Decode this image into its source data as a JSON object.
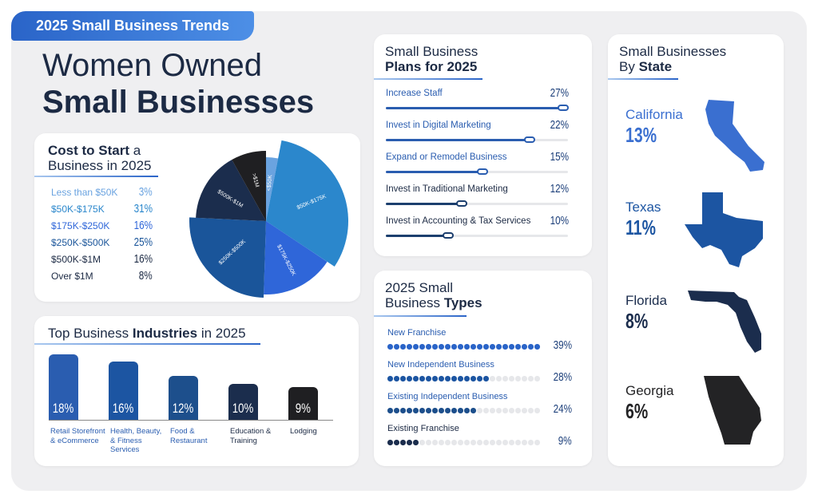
{
  "badge": "2025 Small Business Trends",
  "title": {
    "line1": "Women Owned",
    "line2": "Small Businesses"
  },
  "colors": {
    "accent": "#2a64c8",
    "dark": "#1c2a44"
  },
  "cost": {
    "title_a": "Cost to Start",
    "title_b": " a",
    "title_c": "Business in 2025",
    "items": [
      {
        "label": "Less than $50K",
        "pie_label": "<$50K",
        "value": 3,
        "display": "3%",
        "color": "#6aa3e0"
      },
      {
        "label": "$50K-$175K",
        "pie_label": "$50K-$175K",
        "value": 31,
        "display": "31%",
        "color": "#2b87cc"
      },
      {
        "label": "$175K-$250K",
        "pie_label": "$175K-$250K",
        "value": 16,
        "display": "16%",
        "color": "#2f66d9"
      },
      {
        "label": "$250K-$500K",
        "pie_label": "$250K-$500K",
        "value": 25,
        "display": "25%",
        "color": "#1a559a"
      },
      {
        "label": "$500K-$1M",
        "pie_label": "$500K-$1M",
        "value": 16,
        "display": "16%",
        "color": "#1b2d4d"
      },
      {
        "label": "Over $1M",
        "pie_label": ">$1M",
        "value": 8,
        "display": "8%",
        "color": "#1f1f22"
      }
    ]
  },
  "industries": {
    "title_a": "Top Business ",
    "title_b": "Industries",
    "title_c": " in 2025",
    "items": [
      {
        "label": "Retail Storefront & eCommerce",
        "value": 18,
        "display": "18%",
        "color": "#2a5db0"
      },
      {
        "label": "Health, Beauty, & Fitness Services",
        "value": 16,
        "display": "16%",
        "color": "#1c55a2"
      },
      {
        "label": "Food & Restaurant",
        "value": 12,
        "display": "12%",
        "color": "#1d4f8c"
      },
      {
        "label": "Education & Training",
        "value": 10,
        "display": "10%",
        "color": "#1b2d4d"
      },
      {
        "label": "Lodging",
        "value": 9,
        "display": "9%",
        "color": "#1f1f22"
      }
    ]
  },
  "plans": {
    "title_a": "Small Business",
    "title_b": "Plans for 2025",
    "max": 27,
    "items": [
      {
        "label": "Increase Staff",
        "value": 27,
        "display": "27%"
      },
      {
        "label": "Invest in Digital Marketing",
        "value": 22,
        "display": "22%"
      },
      {
        "label": "Expand or Remodel Business",
        "value": 15,
        "display": "15%"
      },
      {
        "label": "Invest in Traditional Marketing",
        "value": 12,
        "display": "12%"
      },
      {
        "label": "Invest in Accounting & Tax Services",
        "value": 10,
        "display": "10%"
      }
    ]
  },
  "types": {
    "title_a": "2025 Small",
    "title_b": "Business ",
    "title_c": "Types",
    "total_dots": 24,
    "items": [
      {
        "label": "New Franchise",
        "value": 39,
        "display": "39%",
        "dots_filled": 24,
        "color": "#2a64c8"
      },
      {
        "label": "New Independent Business",
        "value": 28,
        "display": "28%",
        "dots_filled": 16,
        "color": "#1c55a2"
      },
      {
        "label": "Existing Independent Business",
        "value": 24,
        "display": "24%",
        "dots_filled": 14,
        "color": "#1d4f8c"
      },
      {
        "label": "Existing Franchise",
        "value": 9,
        "display": "9%",
        "dots_filled": 5,
        "color": "#1b2d4d"
      }
    ]
  },
  "states": {
    "title_a": "Small Businesses",
    "title_b": "By ",
    "title_c": "State",
    "items": [
      {
        "name": "California",
        "display": "13%",
        "value": 13,
        "color": "#3a6fd0"
      },
      {
        "name": "Texas",
        "display": "11%",
        "value": 11,
        "color": "#1c55a2"
      },
      {
        "name": "Florida",
        "display": "8%",
        "value": 8,
        "color": "#1b2d4d"
      },
      {
        "name": "Georgia",
        "display": "6%",
        "value": 6,
        "color": "#232325"
      }
    ]
  }
}
